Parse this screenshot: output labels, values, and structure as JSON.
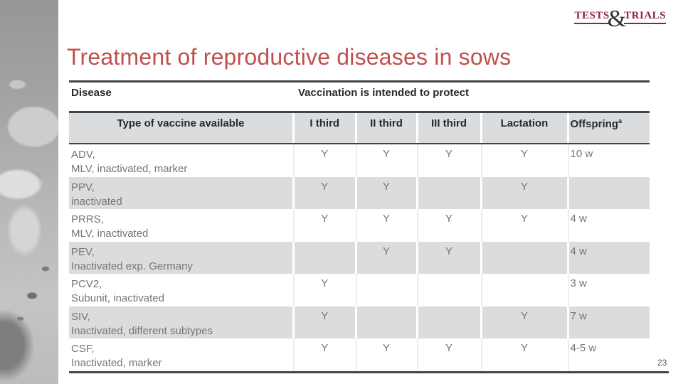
{
  "slide": {
    "title": "Treatment of reproductive diseases in sows",
    "page_number": "23"
  },
  "logo": {
    "word_left": "TESTS",
    "ampersand": "&",
    "word_right": "TRIALS",
    "tagline_left": "·········",
    "tagline_right": "·········"
  },
  "colors": {
    "title_red": "#c0504d",
    "logo_maroon": "#8e2144",
    "table_line": "#3f4449",
    "band_gray": "#dbdcde",
    "header_text": "#26292e",
    "body_text": "#757575"
  },
  "table": {
    "header_row1": {
      "disease": "Disease",
      "protect": "Vaccination is intended to protect"
    },
    "header_row2": {
      "col0": "Type of vaccine available",
      "cols": [
        "I third",
        "II third",
        "III third",
        "Lactation"
      ],
      "offspring_base": "Offspring",
      "offspring_sup": "a"
    },
    "rows": [
      {
        "name": "ADV,",
        "vaccine": "MLV, inactivated, marker",
        "i": "Y",
        "ii": "Y",
        "iii": "Y",
        "lact": "Y",
        "off": "10 w"
      },
      {
        "name": "PPV,",
        "vaccine": "inactivated",
        "i": "Y",
        "ii": "Y",
        "iii": "",
        "lact": "Y",
        "off": ""
      },
      {
        "name": "PRRS,",
        "vaccine": "MLV, inactivated",
        "i": "Y",
        "ii": "Y",
        "iii": "Y",
        "lact": "Y",
        "off": "4 w"
      },
      {
        "name": "PEV,",
        "vaccine": "Inactivated exp. Germany",
        "i": "",
        "ii": "Y",
        "iii": "Y",
        "lact": "",
        "off": "4 w"
      },
      {
        "name": "PCV2,",
        "vaccine": "Subunit, inactivated",
        "i": "Y",
        "ii": "",
        "iii": "",
        "lact": "",
        "off": "3 w"
      },
      {
        "name": "SIV,",
        "vaccine": "Inactivated, different subtypes",
        "i": "Y",
        "ii": "",
        "iii": "",
        "lact": "Y",
        "off": "7 w"
      },
      {
        "name": "CSF,",
        "vaccine": "Inactivated, marker",
        "i": "Y",
        "ii": "Y",
        "iii": "Y",
        "lact": "Y",
        "off": "4-5 w"
      }
    ]
  }
}
